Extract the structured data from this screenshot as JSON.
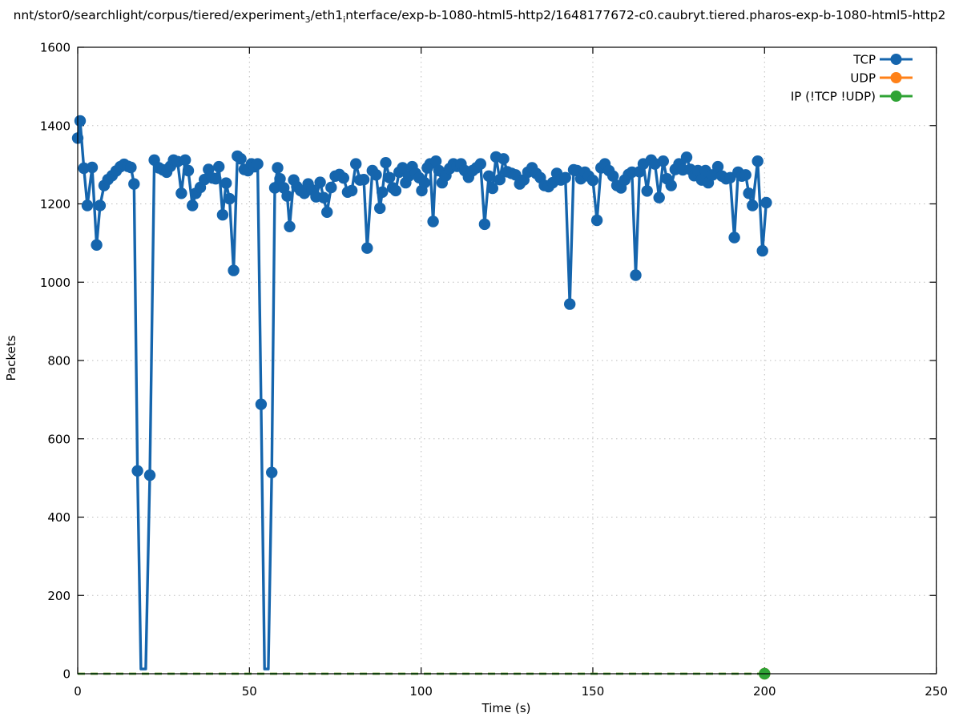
{
  "title": {
    "segments": [
      {
        "text": "nnt/stor0/searchlight/corpus/tiered/experiment"
      },
      {
        "text": "3",
        "subscript": true
      },
      {
        "text": "/eth1"
      },
      {
        "text": "i",
        "subscript": true
      },
      {
        "text": "nterface/exp-b-1080-html5-http2/1648177672-c0.caubryt.tiered.pharos-exp-b-1080-html5-http2"
      }
    ]
  },
  "chart_data": {
    "type": "line",
    "title": "nnt/stor0/searchlight/corpus/tiered/experiment₃/eth1ᵢnterface/exp-b-1080-html5-http2/1648177672-c0.caubryt.tiered.pharos-exp-b-1080-html5-http2",
    "xlabel": "Time (s)",
    "ylabel": "Packets",
    "xlim": [
      0,
      250
    ],
    "ylim": [
      0,
      1600
    ],
    "xticks": [
      0,
      50,
      100,
      150,
      200,
      250
    ],
    "yticks": [
      0,
      200,
      400,
      600,
      800,
      1000,
      1200,
      1400,
      1600
    ],
    "grid": true,
    "grid_color": "#bdbdbd",
    "legend_position": "top-right-inside",
    "series": [
      {
        "name": "TCP",
        "color": "#1565ad",
        "marker": "circle",
        "line_style": "solid",
        "points": [
          [
            0,
            1368
          ],
          [
            0.7,
            1412
          ],
          [
            1.8,
            1291
          ],
          [
            2.8,
            1196
          ],
          [
            4.2,
            1293
          ],
          [
            5.5,
            1095
          ],
          [
            6.5,
            1196
          ],
          [
            7.7,
            1247
          ],
          [
            8.8,
            1262
          ],
          [
            10,
            1272
          ],
          [
            11.2,
            1284
          ],
          [
            12.4,
            1295
          ],
          [
            13.5,
            1301
          ],
          [
            14.6,
            1296
          ],
          [
            15.5,
            1293
          ],
          [
            16.4,
            1251
          ],
          [
            17.4,
            518
          ],
          [
            18.4,
            12,
            0
          ],
          [
            19.8,
            12,
            0
          ],
          [
            21,
            507
          ],
          [
            22.3,
            1312
          ],
          [
            23.6,
            1292
          ],
          [
            24.8,
            1287
          ],
          [
            25.9,
            1281
          ],
          [
            27,
            1296
          ],
          [
            27.9,
            1312
          ],
          [
            29.1,
            1308
          ],
          [
            30.2,
            1227
          ],
          [
            31.3,
            1312
          ],
          [
            32.2,
            1285
          ],
          [
            33.4,
            1196
          ],
          [
            34.4,
            1227
          ],
          [
            35.7,
            1242
          ],
          [
            36.9,
            1262
          ],
          [
            38.1,
            1288
          ],
          [
            39.2,
            1266
          ],
          [
            40.2,
            1264
          ],
          [
            41.1,
            1295
          ],
          [
            42.2,
            1172
          ],
          [
            43.2,
            1253
          ],
          [
            44.2,
            1213
          ],
          [
            45.4,
            1030
          ],
          [
            46.5,
            1322
          ],
          [
            47.5,
            1315
          ],
          [
            48.5,
            1288
          ],
          [
            49.6,
            1285
          ],
          [
            50.6,
            1302
          ],
          [
            51.5,
            1295
          ],
          [
            52.4,
            1302
          ],
          [
            53.4,
            688
          ],
          [
            54.4,
            12,
            0
          ],
          [
            55.5,
            12,
            0
          ],
          [
            56.5,
            514
          ],
          [
            57.4,
            1241
          ],
          [
            58.2,
            1292
          ],
          [
            58.9,
            1264
          ],
          [
            60,
            1241
          ],
          [
            61,
            1220
          ],
          [
            61.7,
            1142
          ],
          [
            62.9,
            1261
          ],
          [
            63.8,
            1244
          ],
          [
            64.9,
            1234
          ],
          [
            66,
            1227
          ],
          [
            67.1,
            1251
          ],
          [
            68.2,
            1236
          ],
          [
            69.4,
            1218
          ],
          [
            70.6,
            1255
          ],
          [
            71.6,
            1216
          ],
          [
            72.6,
            1179
          ],
          [
            73.8,
            1242
          ],
          [
            75,
            1271
          ],
          [
            76.2,
            1275
          ],
          [
            77.4,
            1266
          ],
          [
            78.6,
            1230
          ],
          [
            79.8,
            1234
          ],
          [
            81,
            1302
          ],
          [
            82.2,
            1261
          ],
          [
            83.3,
            1262
          ],
          [
            84.3,
            1087
          ],
          [
            85.8,
            1285
          ],
          [
            86.9,
            1274
          ],
          [
            88,
            1189
          ],
          [
            88.7,
            1230
          ],
          [
            89.7,
            1305
          ],
          [
            90.8,
            1267
          ],
          [
            91.7,
            1241
          ],
          [
            92.6,
            1234
          ],
          [
            93.6,
            1281
          ],
          [
            94.6,
            1292
          ],
          [
            95.5,
            1254
          ],
          [
            96.4,
            1271
          ],
          [
            97.4,
            1295
          ],
          [
            98.4,
            1278
          ],
          [
            99.4,
            1267
          ],
          [
            100.2,
            1234
          ],
          [
            101,
            1254
          ],
          [
            101.8,
            1292
          ],
          [
            102.6,
            1302
          ],
          [
            103.5,
            1155
          ],
          [
            104.3,
            1309
          ],
          [
            105.2,
            1285
          ],
          [
            106.1,
            1254
          ],
          [
            107.2,
            1272
          ],
          [
            108.3,
            1290
          ],
          [
            109.4,
            1302
          ],
          [
            110.5,
            1296
          ],
          [
            111.6,
            1302
          ],
          [
            112.7,
            1285
          ],
          [
            113.8,
            1268
          ],
          [
            115,
            1285
          ],
          [
            116.1,
            1292
          ],
          [
            117.3,
            1302
          ],
          [
            118.5,
            1148
          ],
          [
            119.7,
            1271
          ],
          [
            120.8,
            1240
          ],
          [
            121.8,
            1320
          ],
          [
            122.9,
            1262
          ],
          [
            124,
            1315
          ],
          [
            125.1,
            1282
          ],
          [
            126.3,
            1278
          ],
          [
            127.5,
            1274
          ],
          [
            128.7,
            1251
          ],
          [
            129.9,
            1261
          ],
          [
            131.1,
            1281
          ],
          [
            132.3,
            1292
          ],
          [
            133.5,
            1278
          ],
          [
            134.7,
            1267
          ],
          [
            135.9,
            1247
          ],
          [
            137.1,
            1244
          ],
          [
            138.3,
            1254
          ],
          [
            139.5,
            1278
          ],
          [
            140.7,
            1261
          ],
          [
            142,
            1267
          ],
          [
            143.3,
            944
          ],
          [
            144.4,
            1287
          ],
          [
            145.4,
            1285
          ],
          [
            146.5,
            1264
          ],
          [
            147.7,
            1281
          ],
          [
            148.8,
            1271
          ],
          [
            150,
            1260
          ],
          [
            151.2,
            1158
          ],
          [
            152.4,
            1292
          ],
          [
            153.5,
            1302
          ],
          [
            154.7,
            1285
          ],
          [
            155.9,
            1271
          ],
          [
            157,
            1247
          ],
          [
            158.2,
            1241
          ],
          [
            159.3,
            1261
          ],
          [
            160.4,
            1275
          ],
          [
            161.4,
            1281
          ],
          [
            162.5,
            1018
          ],
          [
            163.6,
            1282
          ],
          [
            164.7,
            1302
          ],
          [
            165.8,
            1233
          ],
          [
            167,
            1312
          ],
          [
            168.1,
            1302
          ],
          [
            169.3,
            1216
          ],
          [
            170.5,
            1309
          ],
          [
            171.6,
            1264
          ],
          [
            172.8,
            1247
          ],
          [
            174,
            1288
          ],
          [
            175.1,
            1302
          ],
          [
            176.2,
            1287
          ],
          [
            177.3,
            1319
          ],
          [
            178.4,
            1288
          ],
          [
            179.5,
            1272
          ],
          [
            180.6,
            1285
          ],
          [
            181.7,
            1261
          ],
          [
            182.8,
            1285
          ],
          [
            183.6,
            1254
          ],
          [
            184.9,
            1274
          ],
          [
            186.4,
            1295
          ],
          [
            187.6,
            1271
          ],
          [
            188.8,
            1264
          ],
          [
            190,
            1267
          ],
          [
            191.2,
            1114
          ],
          [
            192.3,
            1281
          ],
          [
            193.4,
            1271
          ],
          [
            194.5,
            1274
          ],
          [
            195.4,
            1227
          ],
          [
            196.5,
            1196
          ],
          [
            198,
            1309
          ],
          [
            199.4,
            1080
          ],
          [
            200.5,
            1203
          ]
        ]
      },
      {
        "name": "UDP",
        "color": "#ff8118",
        "marker": "circle",
        "line_style": "dashed",
        "points": [
          [
            0,
            0,
            0
          ],
          [
            200,
            0
          ]
        ]
      },
      {
        "name": "IP (!TCP  !UDP)",
        "color": "#2fa335",
        "marker": "circle",
        "line_style": "dashed",
        "points": [
          [
            0,
            0,
            0
          ],
          [
            200,
            0
          ]
        ]
      }
    ]
  }
}
